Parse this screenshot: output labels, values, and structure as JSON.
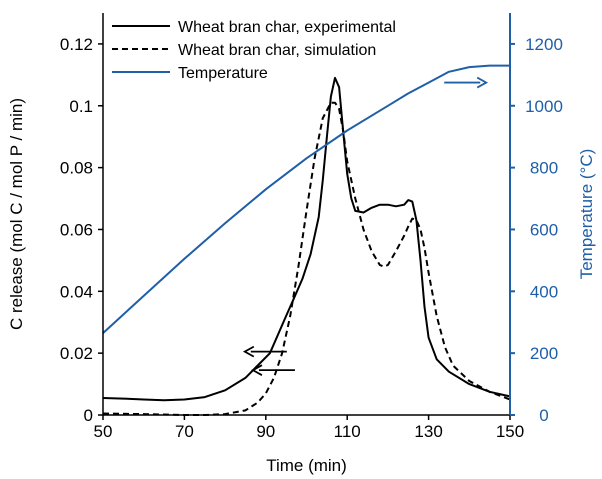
{
  "chart_data": {
    "type": "line",
    "xlabel": "Time (min)",
    "ylabel": "C release (mol C / mol P / min)",
    "y2label": "Temperature (°C)",
    "xlim": [
      50,
      150
    ],
    "ylim": [
      0,
      0.13
    ],
    "y2lim": [
      0,
      1300
    ],
    "xticks": [
      "50",
      "70",
      "90",
      "110",
      "130",
      "150"
    ],
    "yticks": [
      "0",
      "0.02",
      "0.04",
      "0.06",
      "0.08",
      "0.1",
      "0.12"
    ],
    "y2ticks": [
      "0",
      "200",
      "400",
      "600",
      "800",
      "1000",
      "1200"
    ],
    "colors": {
      "primary": "#000000",
      "secondary": "#1f5fa8"
    },
    "legend": {
      "placement": "top-left",
      "entries": [
        {
          "label": "Wheat bran char, experimental",
          "style": "solid",
          "color": "#000000"
        },
        {
          "label": "Wheat bran char, simulation",
          "style": "dashed",
          "color": "#000000"
        },
        {
          "label": "Temperature",
          "style": "solid",
          "color": "#1f5fa8"
        }
      ]
    },
    "series": [
      {
        "name": "Wheat bran char, experimental",
        "axis": "left",
        "style": "solid",
        "color": "#000000",
        "points": [
          [
            50,
            0.0055
          ],
          [
            55,
            0.0053
          ],
          [
            60,
            0.005
          ],
          [
            65,
            0.0048
          ],
          [
            70,
            0.005
          ],
          [
            75,
            0.0058
          ],
          [
            80,
            0.008
          ],
          [
            85,
            0.012
          ],
          [
            88,
            0.016
          ],
          [
            91,
            0.02
          ],
          [
            93,
            0.026
          ],
          [
            95,
            0.032
          ],
          [
            97,
            0.038
          ],
          [
            99,
            0.044
          ],
          [
            101,
            0.052
          ],
          [
            103,
            0.064
          ],
          [
            104,
            0.076
          ],
          [
            105,
            0.09
          ],
          [
            106,
            0.103
          ],
          [
            107,
            0.109
          ],
          [
            108,
            0.106
          ],
          [
            109,
            0.092
          ],
          [
            110,
            0.078
          ],
          [
            111,
            0.07
          ],
          [
            112,
            0.066
          ],
          [
            114,
            0.0655
          ],
          [
            116,
            0.067
          ],
          [
            118,
            0.068
          ],
          [
            120,
            0.068
          ],
          [
            122,
            0.0675
          ],
          [
            124,
            0.068
          ],
          [
            125,
            0.0695
          ],
          [
            126,
            0.069
          ],
          [
            127,
            0.063
          ],
          [
            128,
            0.05
          ],
          [
            129,
            0.035
          ],
          [
            130,
            0.025
          ],
          [
            132,
            0.018
          ],
          [
            135,
            0.014
          ],
          [
            140,
            0.01
          ],
          [
            145,
            0.0075
          ],
          [
            150,
            0.006
          ]
        ]
      },
      {
        "name": "Wheat bran char, simulation",
        "axis": "left",
        "style": "dashed",
        "color": "#000000",
        "points": [
          [
            50,
            0.0005
          ],
          [
            60,
            0.0003
          ],
          [
            70,
            0
          ],
          [
            75,
            0
          ],
          [
            80,
            0.0003
          ],
          [
            85,
            0.0015
          ],
          [
            88,
            0.004
          ],
          [
            90,
            0.007
          ],
          [
            92,
            0.012
          ],
          [
            94,
            0.02
          ],
          [
            96,
            0.032
          ],
          [
            98,
            0.048
          ],
          [
            100,
            0.066
          ],
          [
            102,
            0.083
          ],
          [
            104,
            0.096
          ],
          [
            106,
            0.101
          ],
          [
            107,
            0.101
          ],
          [
            108,
            0.099
          ],
          [
            109,
            0.092
          ],
          [
            110,
            0.082
          ],
          [
            112,
            0.07
          ],
          [
            114,
            0.06
          ],
          [
            116,
            0.053
          ],
          [
            118,
            0.0485
          ],
          [
            119,
            0.048
          ],
          [
            120,
            0.0485
          ],
          [
            122,
            0.053
          ],
          [
            124,
            0.058
          ],
          [
            125,
            0.061
          ],
          [
            126,
            0.0635
          ],
          [
            127,
            0.063
          ],
          [
            128,
            0.06
          ],
          [
            129,
            0.054
          ],
          [
            130,
            0.046
          ],
          [
            132,
            0.032
          ],
          [
            134,
            0.022
          ],
          [
            136,
            0.016
          ],
          [
            140,
            0.011
          ],
          [
            145,
            0.0075
          ],
          [
            150,
            0.005
          ]
        ]
      },
      {
        "name": "Temperature",
        "axis": "right",
        "style": "solid",
        "color": "#1f5fa8",
        "points": [
          [
            50,
            265
          ],
          [
            60,
            385
          ],
          [
            70,
            505
          ],
          [
            80,
            620
          ],
          [
            90,
            730
          ],
          [
            100,
            830
          ],
          [
            110,
            920
          ],
          [
            120,
            1000
          ],
          [
            125,
            1040
          ],
          [
            130,
            1075
          ],
          [
            135,
            1110
          ],
          [
            140,
            1125
          ],
          [
            145,
            1130
          ],
          [
            150,
            1130
          ]
        ]
      }
    ],
    "annotations": [
      {
        "type": "arrow",
        "direction": "left",
        "points_to": "left axis",
        "at": [
          90,
          0.0205
        ]
      },
      {
        "type": "arrow",
        "direction": "left",
        "points_to": "left axis",
        "at": [
          92,
          0.0145
        ]
      },
      {
        "type": "arrow",
        "direction": "right",
        "points_to": "right axis",
        "at": [
          139,
          1075
        ]
      }
    ]
  }
}
